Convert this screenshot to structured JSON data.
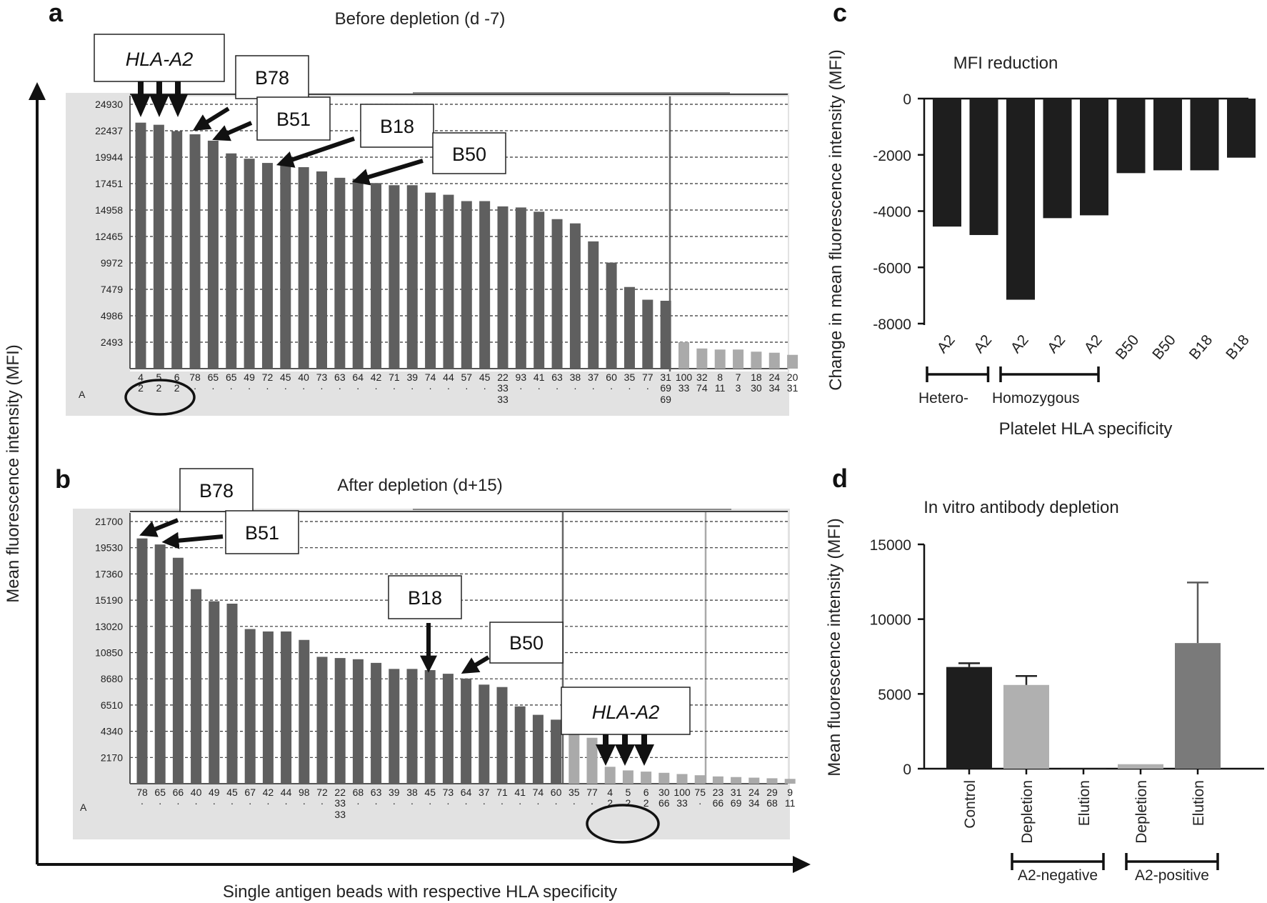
{
  "figure": {
    "y_axis_label": "Mean fluorescence intensity (MFI)",
    "x_axis_label": "Single antigen beads with respective HLA specificity"
  },
  "colors": {
    "dark_bar": "#5f5f5f",
    "light_bar": "#aaaaaa",
    "panel_bg": "#e2e2e2",
    "black_bar": "#1e1e1e",
    "grey_bar": "#7a7a7a",
    "lightgrey_bar": "#b0b0b0"
  },
  "chart_data": [
    {
      "panel": "a",
      "type": "bar",
      "title": "Before depletion (d -7)",
      "row_label": "A",
      "yticks": [
        2493,
        4986,
        7479,
        9972,
        12465,
        14958,
        17451,
        19944,
        22437,
        24930
      ],
      "ylim": [
        0,
        24930
      ],
      "grid": true,
      "bars": [
        {
          "top": "4",
          "bottom": "2",
          "value": 23200,
          "tone": "dark"
        },
        {
          "top": "5",
          "bottom": "2",
          "value": 23000,
          "tone": "dark"
        },
        {
          "top": "6",
          "bottom": "2",
          "value": 22400,
          "tone": "dark"
        },
        {
          "top": "78",
          "bottom": "",
          "value": 22100,
          "tone": "dark"
        },
        {
          "top": "65",
          "bottom": "",
          "value": 21500,
          "tone": "dark"
        },
        {
          "top": "65",
          "bottom": "",
          "value": 20300,
          "tone": "dark"
        },
        {
          "top": "49",
          "bottom": "",
          "value": 19800,
          "tone": "dark"
        },
        {
          "top": "72",
          "bottom": "",
          "value": 19400,
          "tone": "dark"
        },
        {
          "top": "45",
          "bottom": "",
          "value": 19300,
          "tone": "dark"
        },
        {
          "top": "40",
          "bottom": "",
          "value": 19000,
          "tone": "dark"
        },
        {
          "top": "73",
          "bottom": "",
          "value": 18600,
          "tone": "dark"
        },
        {
          "top": "63",
          "bottom": "",
          "value": 18000,
          "tone": "dark"
        },
        {
          "top": "64",
          "bottom": "",
          "value": 17900,
          "tone": "dark"
        },
        {
          "top": "42",
          "bottom": "",
          "value": 17500,
          "tone": "dark"
        },
        {
          "top": "71",
          "bottom": "",
          "value": 17300,
          "tone": "dark"
        },
        {
          "top": "39",
          "bottom": "",
          "value": 17300,
          "tone": "dark"
        },
        {
          "top": "74",
          "bottom": "",
          "value": 16600,
          "tone": "dark"
        },
        {
          "top": "44",
          "bottom": "",
          "value": 16400,
          "tone": "dark"
        },
        {
          "top": "57",
          "bottom": "",
          "value": 15800,
          "tone": "dark"
        },
        {
          "top": "45",
          "bottom": "",
          "value": 15800,
          "tone": "dark"
        },
        {
          "top": "22",
          "bottom": "33",
          "value": 15300,
          "tone": "dark"
        },
        {
          "top": "93",
          "bottom": "",
          "value": 15200,
          "tone": "dark"
        },
        {
          "top": "41",
          "bottom": "",
          "value": 14800,
          "tone": "dark"
        },
        {
          "top": "63",
          "bottom": "",
          "value": 14100,
          "tone": "dark"
        },
        {
          "top": "38",
          "bottom": "",
          "value": 13700,
          "tone": "dark"
        },
        {
          "top": "37",
          "bottom": "",
          "value": 12000,
          "tone": "dark"
        },
        {
          "top": "60",
          "bottom": "",
          "value": 10000,
          "tone": "dark"
        },
        {
          "top": "35",
          "bottom": "",
          "value": 7700,
          "tone": "dark"
        },
        {
          "top": "77",
          "bottom": "",
          "value": 6500,
          "tone": "dark"
        },
        {
          "top": "31",
          "bottom": "69",
          "value": 6400,
          "tone": "dark"
        },
        {
          "top": "100",
          "bottom": "33",
          "value": 2500,
          "tone": "light"
        },
        {
          "top": "32",
          "bottom": "74",
          "value": 1900,
          "tone": "light"
        },
        {
          "top": "8",
          "bottom": "11",
          "value": 1800,
          "tone": "light"
        },
        {
          "top": "7",
          "bottom": "3",
          "value": 1800,
          "tone": "light"
        },
        {
          "top": "18",
          "bottom": "30",
          "value": 1600,
          "tone": "light"
        },
        {
          "top": "24",
          "bottom": "34",
          "value": 1500,
          "tone": "light"
        },
        {
          "top": "20",
          "bottom": "31",
          "value": 1300,
          "tone": "light"
        }
      ],
      "annotations": [
        "HLA-A2",
        "B78",
        "B51",
        "B18",
        "B50"
      ]
    },
    {
      "panel": "b",
      "type": "bar",
      "title": "After depletion (d+15)",
      "row_label": "A",
      "yticks": [
        2170,
        4340,
        6510,
        8680,
        10850,
        13020,
        15190,
        17360,
        19530,
        21700
      ],
      "ylim": [
        0,
        21700
      ],
      "grid": true,
      "bars": [
        {
          "top": "78",
          "bottom": "",
          "value": 20300,
          "tone": "dark"
        },
        {
          "top": "65",
          "bottom": "",
          "value": 19800,
          "tone": "dark"
        },
        {
          "top": "66",
          "bottom": "",
          "value": 18700,
          "tone": "dark"
        },
        {
          "top": "40",
          "bottom": "",
          "value": 16100,
          "tone": "dark"
        },
        {
          "top": "49",
          "bottom": "",
          "value": 15100,
          "tone": "dark"
        },
        {
          "top": "45",
          "bottom": "",
          "value": 14900,
          "tone": "dark"
        },
        {
          "top": "67",
          "bottom": "",
          "value": 12800,
          "tone": "dark"
        },
        {
          "top": "42",
          "bottom": "",
          "value": 12600,
          "tone": "dark"
        },
        {
          "top": "44",
          "bottom": "",
          "value": 12600,
          "tone": "dark"
        },
        {
          "top": "98",
          "bottom": "",
          "value": 11900,
          "tone": "dark"
        },
        {
          "top": "72",
          "bottom": "",
          "value": 10500,
          "tone": "dark"
        },
        {
          "top": "22",
          "bottom": "33",
          "value": 10400,
          "tone": "dark"
        },
        {
          "top": "68",
          "bottom": "",
          "value": 10300,
          "tone": "dark"
        },
        {
          "top": "63",
          "bottom": "",
          "value": 10000,
          "tone": "dark"
        },
        {
          "top": "39",
          "bottom": "",
          "value": 9500,
          "tone": "dark"
        },
        {
          "top": "38",
          "bottom": "",
          "value": 9500,
          "tone": "dark"
        },
        {
          "top": "45",
          "bottom": "",
          "value": 9400,
          "tone": "dark"
        },
        {
          "top": "73",
          "bottom": "",
          "value": 9100,
          "tone": "dark"
        },
        {
          "top": "64",
          "bottom": "",
          "value": 8700,
          "tone": "dark"
        },
        {
          "top": "37",
          "bottom": "",
          "value": 8200,
          "tone": "dark"
        },
        {
          "top": "71",
          "bottom": "",
          "value": 8000,
          "tone": "dark"
        },
        {
          "top": "41",
          "bottom": "",
          "value": 6400,
          "tone": "dark"
        },
        {
          "top": "74",
          "bottom": "",
          "value": 5700,
          "tone": "dark"
        },
        {
          "top": "60",
          "bottom": "",
          "value": 5300,
          "tone": "dark"
        },
        {
          "top": "35",
          "bottom": "",
          "value": 4400,
          "tone": "light"
        },
        {
          "top": "77",
          "bottom": "",
          "value": 3800,
          "tone": "light"
        },
        {
          "top": "4",
          "bottom": "2",
          "value": 1400,
          "tone": "light"
        },
        {
          "top": "5",
          "bottom": "2",
          "value": 1100,
          "tone": "light"
        },
        {
          "top": "6",
          "bottom": "2",
          "value": 1000,
          "tone": "light"
        },
        {
          "top": "30",
          "bottom": "66",
          "value": 900,
          "tone": "light"
        },
        {
          "top": "100",
          "bottom": "33",
          "value": 800,
          "tone": "light"
        },
        {
          "top": "75",
          "bottom": "",
          "value": 700,
          "tone": "light"
        },
        {
          "top": "23",
          "bottom": "66",
          "value": 600,
          "tone": "light"
        },
        {
          "top": "31",
          "bottom": "69",
          "value": 550,
          "tone": "light"
        },
        {
          "top": "24",
          "bottom": "34",
          "value": 500,
          "tone": "light"
        },
        {
          "top": "29",
          "bottom": "68",
          "value": 450,
          "tone": "light"
        },
        {
          "top": "9",
          "bottom": "11",
          "value": 400,
          "tone": "light"
        }
      ],
      "annotations": [
        "B78",
        "B51",
        "B18",
        "B50",
        "HLA-A2"
      ]
    },
    {
      "panel": "c",
      "type": "bar",
      "title": "MFI reduction",
      "ylabel": "Change in mean fluorescence intensity (MFI)",
      "xlabel": "Platelet HLA specificity",
      "ylim": [
        -8000,
        0
      ],
      "yticks": [
        0,
        -2000,
        -4000,
        -6000,
        -8000
      ],
      "categories": [
        "A2",
        "A2",
        "A2",
        "A2",
        "A2",
        "B50",
        "B50",
        "B18",
        "B18"
      ],
      "values": [
        -4550,
        -4850,
        -7150,
        -4250,
        -4150,
        -2650,
        -2550,
        -2550,
        -2100
      ],
      "groups": [
        {
          "label": "Hetero-",
          "span": [
            0,
            1
          ]
        },
        {
          "label": "Homozygous",
          "span": [
            2,
            4
          ]
        }
      ]
    },
    {
      "panel": "d",
      "type": "bar",
      "title": "In vitro antibody depletion",
      "ylabel": "Mean fluorescence intensity (MFI)",
      "ylim": [
        0,
        15000
      ],
      "yticks": [
        0,
        5000,
        10000,
        15000
      ],
      "categories": [
        "Control",
        "Depletion",
        "Elution",
        "Depletion",
        "Elution"
      ],
      "values": [
        6800,
        5600,
        50,
        300,
        8400
      ],
      "errors": [
        250,
        600,
        0,
        0,
        4050
      ],
      "tones": [
        "black",
        "lightgrey",
        "black",
        "lightgrey",
        "grey"
      ],
      "groups": [
        {
          "label": "A2-negative",
          "span": [
            1,
            2
          ]
        },
        {
          "label": "A2-positive",
          "span": [
            3,
            4
          ]
        }
      ]
    }
  ]
}
